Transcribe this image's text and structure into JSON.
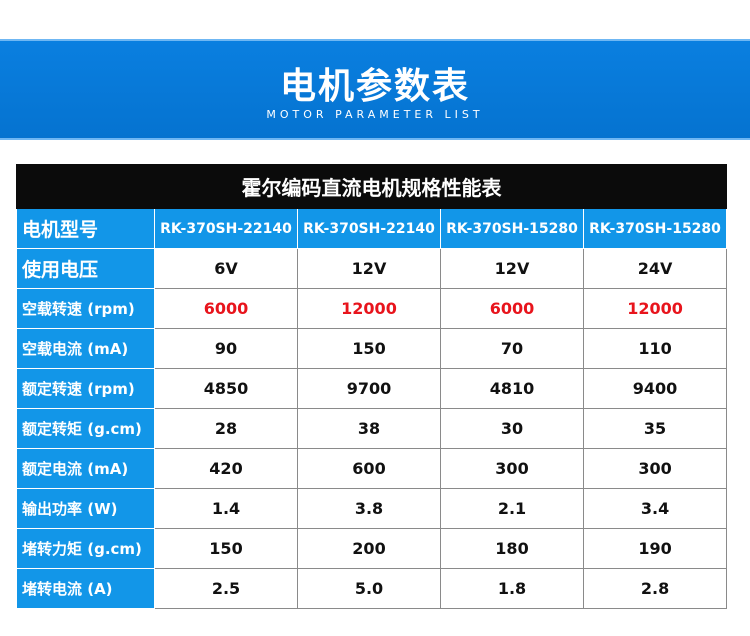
{
  "banner": {
    "title": "电机参数表",
    "subtitle": "MOTOR PARAMETER LIST"
  },
  "table": {
    "title": "霍尔编码直流电机规格性能表",
    "header_label": "电机型号",
    "models": [
      "RK-370SH-22140",
      "RK-370SH-22140",
      "RK-370SH-15280",
      "RK-370SH-15280"
    ],
    "rows": [
      {
        "label": "使用电压",
        "values": [
          "6V",
          "12V",
          "12V",
          "24V"
        ]
      },
      {
        "label": "空载转速 (rpm)",
        "values": [
          "6000",
          "12000",
          "6000",
          "12000"
        ]
      },
      {
        "label": "空载电流 (mA)",
        "values": [
          "90",
          "150",
          "70",
          "110"
        ]
      },
      {
        "label": "额定转速 (rpm)",
        "values": [
          "4850",
          "9700",
          "4810",
          "9400"
        ]
      },
      {
        "label": "额定转矩 (g.cm)",
        "values": [
          "28",
          "38",
          "30",
          "35"
        ]
      },
      {
        "label": "额定电流 (mA)",
        "values": [
          "420",
          "600",
          "300",
          "300"
        ]
      },
      {
        "label": "输出功率 (W)",
        "values": [
          "1.4",
          "3.8",
          "2.1",
          "3.4"
        ]
      },
      {
        "label": "堵转力矩 (g.cm)",
        "values": [
          "150",
          "200",
          "180",
          "190"
        ]
      },
      {
        "label": "堵转电流 (A)",
        "values": [
          "2.5",
          "5.0",
          "1.8",
          "2.8"
        ]
      }
    ]
  },
  "colors": {
    "banner_blue": "#0a7fe0",
    "label_blue": "#1296e8",
    "highlight_red": "#e8141c",
    "title_bar": "#0b0b0b"
  }
}
